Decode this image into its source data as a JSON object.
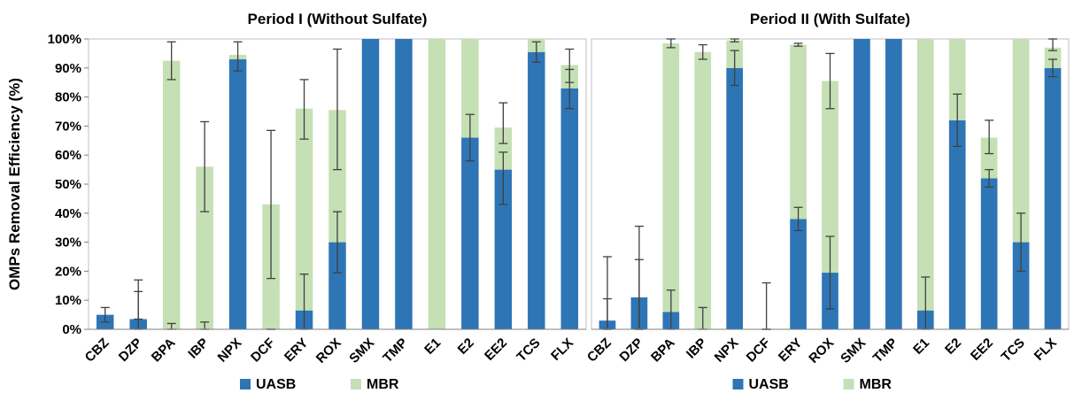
{
  "chart_data": [
    {
      "type": "bar",
      "stacked": true,
      "title": "Period I (Without Sulfate)",
      "xlabel": "",
      "ylabel": "OMPs Removal Efficiency (%)",
      "ylim": [
        0,
        100
      ],
      "yticks": [
        "0%",
        "10%",
        "20%",
        "30%",
        "40%",
        "50%",
        "60%",
        "70%",
        "80%",
        "90%",
        "100%"
      ],
      "categories": [
        "CBZ",
        "DZP",
        "BPA",
        "IBP",
        "NPX",
        "DCF",
        "ERY",
        "ROX",
        "SMX",
        "TMP",
        "E1",
        "E2",
        "EE2",
        "TCS",
        "FLX"
      ],
      "series": [
        {
          "name": "UASB",
          "color": "#2E75B6",
          "values": [
            5,
            3.5,
            0,
            0,
            93,
            0,
            6.5,
            30,
            100,
            100,
            0,
            66,
            55,
            95.5,
            83
          ],
          "error_low": [
            2.5,
            0,
            0,
            0,
            89,
            0,
            0,
            19.5,
            null,
            null,
            null,
            58,
            43,
            92,
            76
          ],
          "error_high": [
            7.5,
            13,
            2,
            2.5,
            99,
            0,
            19,
            40.5,
            null,
            null,
            null,
            74,
            61,
            99,
            89.5
          ]
        },
        {
          "name": "MBR",
          "color": "#C5E0B4",
          "values": [
            0,
            0,
            92.5,
            56,
            1.5,
            43,
            69.5,
            45.5,
            0,
            0,
            100,
            34,
            14.5,
            4.5,
            8
          ],
          "error_low": [
            null,
            3.5,
            86,
            40.5,
            null,
            17.5,
            65.5,
            55,
            null,
            null,
            null,
            null,
            64,
            null,
            85
          ],
          "error_high": [
            null,
            17,
            99,
            71.5,
            null,
            68.5,
            86,
            96.5,
            null,
            null,
            null,
            null,
            78,
            null,
            96.5
          ]
        }
      ],
      "grid": false,
      "legend": "bottom"
    },
    {
      "type": "bar",
      "stacked": true,
      "title": "Period II (With Sulfate)",
      "xlabel": "",
      "ylabel": "",
      "ylim": [
        0,
        100
      ],
      "categories": [
        "CBZ",
        "DZP",
        "BPA",
        "IBP",
        "NPX",
        "DCF",
        "ERY",
        "ROX",
        "SMX",
        "TMP",
        "E1",
        "E2",
        "EE2",
        "TCS",
        "FLX"
      ],
      "series": [
        {
          "name": "UASB",
          "color": "#2E75B6",
          "values": [
            3,
            11,
            6,
            0,
            90,
            0,
            38,
            19.5,
            100,
            100,
            6.5,
            72,
            52,
            30,
            90
          ],
          "error_low": [
            0,
            0,
            0,
            0,
            84,
            0,
            34,
            7,
            null,
            null,
            0,
            63,
            49,
            20,
            87
          ],
          "error_high": [
            10.5,
            24,
            13.5,
            7.5,
            96,
            0,
            42,
            32,
            null,
            null,
            18,
            81,
            55,
            40,
            93
          ]
        },
        {
          "name": "MBR",
          "color": "#C5E0B4",
          "values": [
            0,
            0,
            92.5,
            95.5,
            9.5,
            0,
            60,
            66,
            0,
            0,
            93.5,
            28,
            14,
            70,
            7
          ],
          "error_low": [
            0,
            0,
            97,
            93,
            99,
            0,
            97.5,
            76,
            null,
            null,
            null,
            null,
            60.5,
            null,
            96
          ],
          "error_high": [
            25,
            35.5,
            100,
            98,
            100,
            16,
            98.5,
            95,
            null,
            null,
            null,
            null,
            72,
            null,
            100
          ]
        }
      ],
      "grid": false,
      "legend": "bottom"
    }
  ]
}
